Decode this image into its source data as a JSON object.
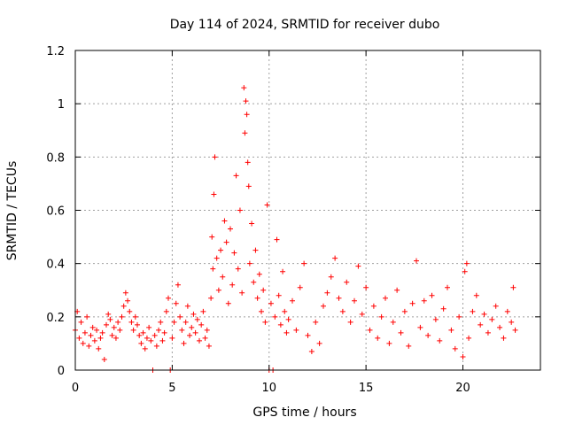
{
  "chart_data": {
    "type": "scatter",
    "title": "Day 114 of 2024, SRMTID for receiver dubo",
    "xlabel": "GPS time / hours",
    "ylabel": "SRMTID / TECUs",
    "xlim": [
      0,
      24
    ],
    "ylim": [
      0,
      1.2
    ],
    "x_ticks": [
      0,
      5,
      10,
      15,
      20
    ],
    "x_tick_labels": [
      "0",
      "5",
      "10",
      "15",
      "20"
    ],
    "y_ticks": [
      0,
      0.2,
      0.4,
      0.6,
      0.8,
      1,
      1.2
    ],
    "y_tick_labels": [
      "0",
      "0.2",
      "0.4",
      "0.6",
      "0.8",
      "1",
      "1.2"
    ],
    "grid": true,
    "marker": "plus",
    "color": "#ff0000",
    "series": [
      {
        "name": "SRMTID",
        "points": [
          [
            0.0,
            0.15
          ],
          [
            0.1,
            0.22
          ],
          [
            0.2,
            0.12
          ],
          [
            0.3,
            0.18
          ],
          [
            0.4,
            0.1
          ],
          [
            0.5,
            0.14
          ],
          [
            0.6,
            0.2
          ],
          [
            0.7,
            0.09
          ],
          [
            0.8,
            0.13
          ],
          [
            0.9,
            0.16
          ],
          [
            1.0,
            0.11
          ],
          [
            1.1,
            0.15
          ],
          [
            1.2,
            0.08
          ],
          [
            1.3,
            0.12
          ],
          [
            1.4,
            0.14
          ],
          [
            1.5,
            0.04
          ],
          [
            1.6,
            0.17
          ],
          [
            1.7,
            0.21
          ],
          [
            1.8,
            0.19
          ],
          [
            1.9,
            0.13
          ],
          [
            2.0,
            0.16
          ],
          [
            2.1,
            0.12
          ],
          [
            2.2,
            0.18
          ],
          [
            2.3,
            0.15
          ],
          [
            2.4,
            0.2
          ],
          [
            2.5,
            0.24
          ],
          [
            2.6,
            0.29
          ],
          [
            2.7,
            0.26
          ],
          [
            2.8,
            0.22
          ],
          [
            2.9,
            0.18
          ],
          [
            3.0,
            0.15
          ],
          [
            3.1,
            0.2
          ],
          [
            3.2,
            0.17
          ],
          [
            3.3,
            0.13
          ],
          [
            3.4,
            0.1
          ],
          [
            3.5,
            0.14
          ],
          [
            3.6,
            0.08
          ],
          [
            3.7,
            0.12
          ],
          [
            3.8,
            0.16
          ],
          [
            3.9,
            0.11
          ],
          [
            4.0,
            0.0
          ],
          [
            4.1,
            0.13
          ],
          [
            4.2,
            0.09
          ],
          [
            4.3,
            0.15
          ],
          [
            4.4,
            0.18
          ],
          [
            4.5,
            0.11
          ],
          [
            4.6,
            0.14
          ],
          [
            4.7,
            0.22
          ],
          [
            4.8,
            0.27
          ],
          [
            4.9,
            0.0
          ],
          [
            5.0,
            0.12
          ],
          [
            5.1,
            0.18
          ],
          [
            5.2,
            0.25
          ],
          [
            5.3,
            0.32
          ],
          [
            5.4,
            0.2
          ],
          [
            5.5,
            0.15
          ],
          [
            5.6,
            0.1
          ],
          [
            5.7,
            0.18
          ],
          [
            5.8,
            0.24
          ],
          [
            5.9,
            0.13
          ],
          [
            6.0,
            0.16
          ],
          [
            6.1,
            0.21
          ],
          [
            6.2,
            0.14
          ],
          [
            6.3,
            0.19
          ],
          [
            6.4,
            0.11
          ],
          [
            6.5,
            0.17
          ],
          [
            6.6,
            0.22
          ],
          [
            6.7,
            0.12
          ],
          [
            6.8,
            0.15
          ],
          [
            6.9,
            0.09
          ],
          [
            7.0,
            0.27
          ],
          [
            7.05,
            0.5
          ],
          [
            7.1,
            0.38
          ],
          [
            7.15,
            0.66
          ],
          [
            7.2,
            0.8
          ],
          [
            7.3,
            0.42
          ],
          [
            7.4,
            0.3
          ],
          [
            7.5,
            0.45
          ],
          [
            7.6,
            0.35
          ],
          [
            7.7,
            0.56
          ],
          [
            7.8,
            0.48
          ],
          [
            7.9,
            0.25
          ],
          [
            8.0,
            0.53
          ],
          [
            8.1,
            0.32
          ],
          [
            8.2,
            0.44
          ],
          [
            8.3,
            0.73
          ],
          [
            8.4,
            0.38
          ],
          [
            8.5,
            0.6
          ],
          [
            8.6,
            0.29
          ],
          [
            8.7,
            1.06
          ],
          [
            8.75,
            0.89
          ],
          [
            8.8,
            1.01
          ],
          [
            8.85,
            0.96
          ],
          [
            8.9,
            0.78
          ],
          [
            8.95,
            0.69
          ],
          [
            9.0,
            0.4
          ],
          [
            9.1,
            0.55
          ],
          [
            9.2,
            0.33
          ],
          [
            9.3,
            0.45
          ],
          [
            9.4,
            0.27
          ],
          [
            9.5,
            0.36
          ],
          [
            9.6,
            0.22
          ],
          [
            9.7,
            0.3
          ],
          [
            9.8,
            0.18
          ],
          [
            9.9,
            0.62
          ],
          [
            10.0,
            0.0
          ],
          [
            10.1,
            0.25
          ],
          [
            10.2,
            0.0
          ],
          [
            10.3,
            0.2
          ],
          [
            10.4,
            0.49
          ],
          [
            10.5,
            0.28
          ],
          [
            10.6,
            0.17
          ],
          [
            10.7,
            0.37
          ],
          [
            10.8,
            0.22
          ],
          [
            10.9,
            0.14
          ],
          [
            11.0,
            0.19
          ],
          [
            11.2,
            0.26
          ],
          [
            11.4,
            0.15
          ],
          [
            11.6,
            0.31
          ],
          [
            11.8,
            0.4
          ],
          [
            12.0,
            0.13
          ],
          [
            12.2,
            0.07
          ],
          [
            12.4,
            0.18
          ],
          [
            12.6,
            0.1
          ],
          [
            12.8,
            0.24
          ],
          [
            13.0,
            0.29
          ],
          [
            13.2,
            0.35
          ],
          [
            13.4,
            0.42
          ],
          [
            13.6,
            0.27
          ],
          [
            13.8,
            0.22
          ],
          [
            14.0,
            0.33
          ],
          [
            14.2,
            0.18
          ],
          [
            14.4,
            0.26
          ],
          [
            14.6,
            0.39
          ],
          [
            14.8,
            0.21
          ],
          [
            15.0,
            0.31
          ],
          [
            15.2,
            0.15
          ],
          [
            15.4,
            0.24
          ],
          [
            15.6,
            0.12
          ],
          [
            15.8,
            0.2
          ],
          [
            16.0,
            0.27
          ],
          [
            16.2,
            0.1
          ],
          [
            16.4,
            0.18
          ],
          [
            16.6,
            0.3
          ],
          [
            16.8,
            0.14
          ],
          [
            17.0,
            0.22
          ],
          [
            17.2,
            0.09
          ],
          [
            17.4,
            0.25
          ],
          [
            17.6,
            0.41
          ],
          [
            17.8,
            0.16
          ],
          [
            18.0,
            0.26
          ],
          [
            18.2,
            0.13
          ],
          [
            18.4,
            0.28
          ],
          [
            18.6,
            0.19
          ],
          [
            18.8,
            0.11
          ],
          [
            19.0,
            0.23
          ],
          [
            19.2,
            0.31
          ],
          [
            19.4,
            0.15
          ],
          [
            19.6,
            0.08
          ],
          [
            19.8,
            0.2
          ],
          [
            20.0,
            0.05
          ],
          [
            20.1,
            0.37
          ],
          [
            20.2,
            0.4
          ],
          [
            20.3,
            0.12
          ],
          [
            20.5,
            0.22
          ],
          [
            20.7,
            0.28
          ],
          [
            20.9,
            0.17
          ],
          [
            21.1,
            0.21
          ],
          [
            21.3,
            0.14
          ],
          [
            21.5,
            0.19
          ],
          [
            21.7,
            0.24
          ],
          [
            21.9,
            0.16
          ],
          [
            22.1,
            0.12
          ],
          [
            22.3,
            0.22
          ],
          [
            22.5,
            0.18
          ],
          [
            22.6,
            0.31
          ],
          [
            22.7,
            0.15
          ]
        ]
      }
    ]
  }
}
